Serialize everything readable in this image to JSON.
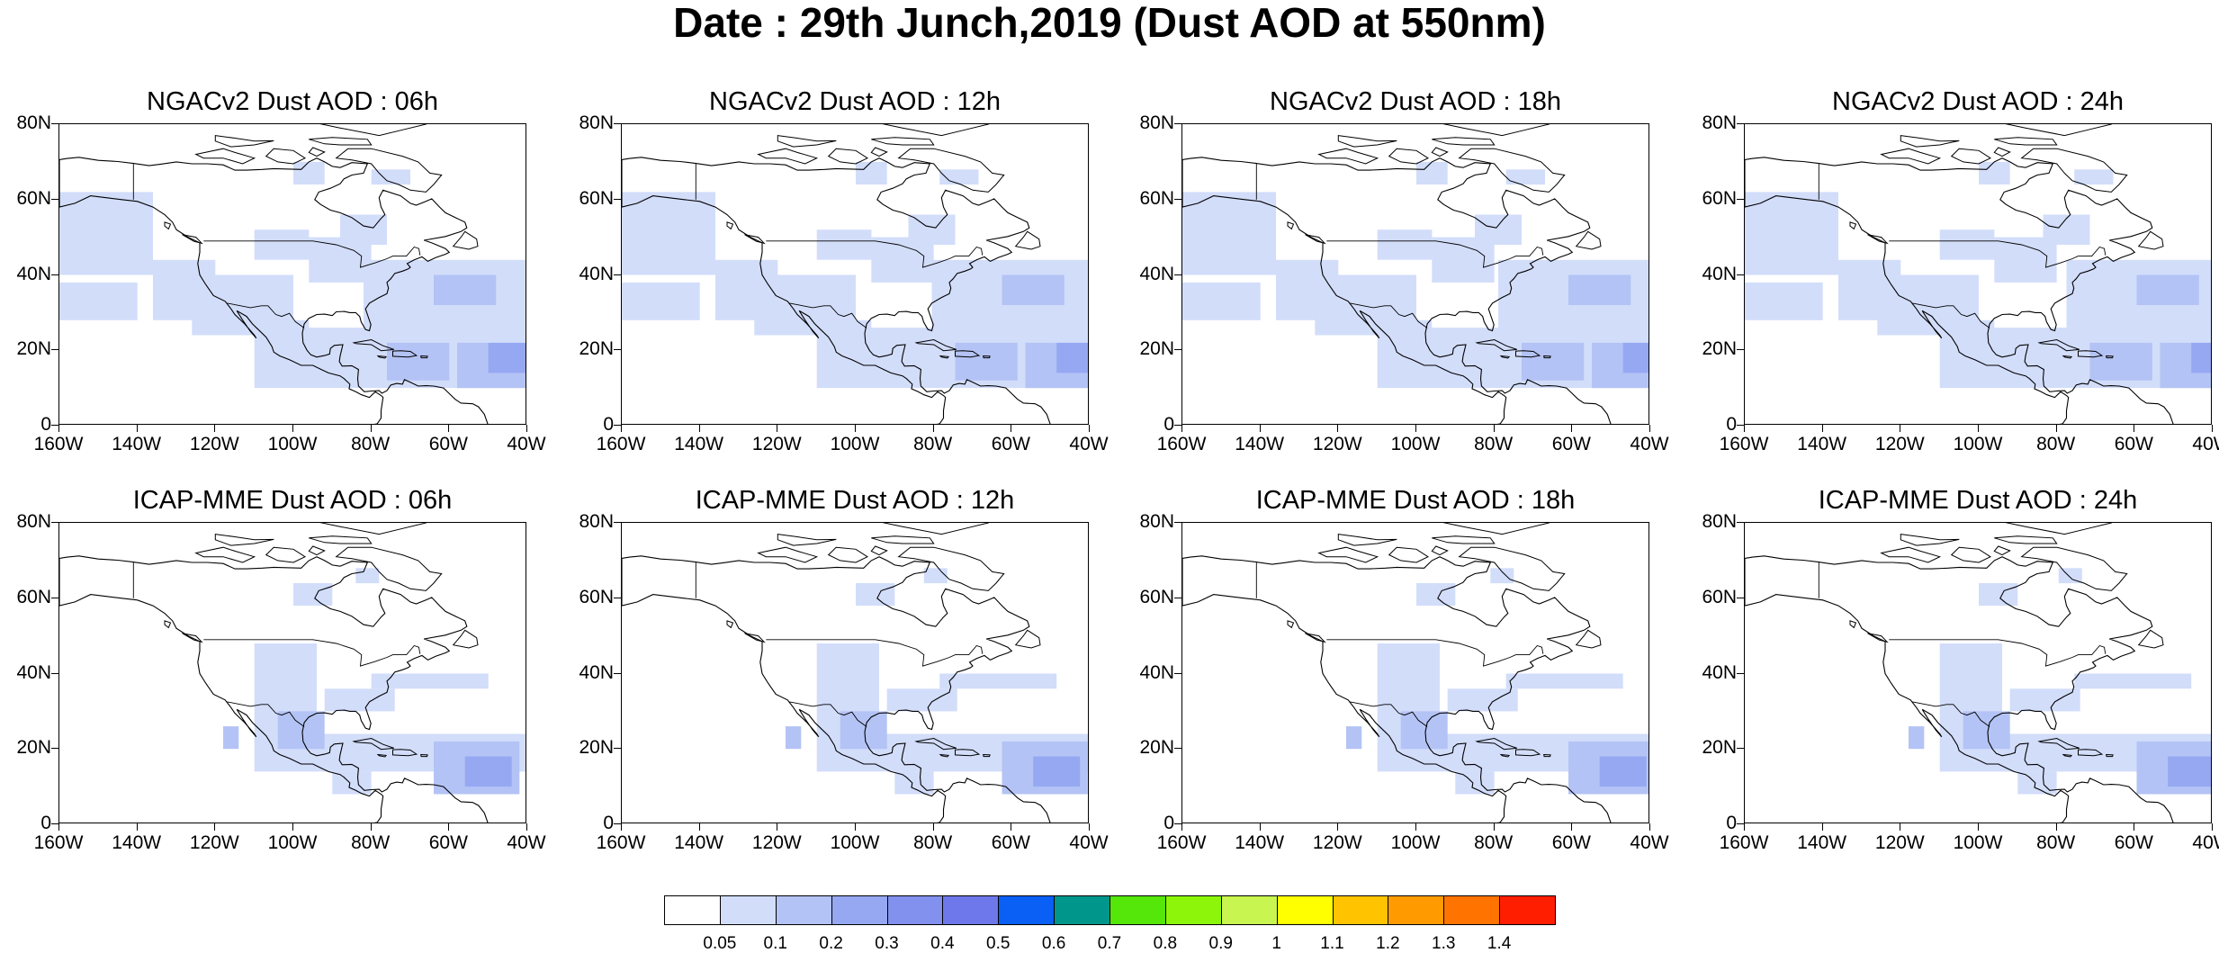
{
  "title": "Date : 29th Junch,2019 (Dust AOD at 550nm)",
  "panels": [
    {
      "title": "NGACv2 Dust AOD : 06h",
      "model": "NGACv2",
      "forecast_hour": "06h"
    },
    {
      "title": "NGACv2 Dust AOD : 12h",
      "model": "NGACv2",
      "forecast_hour": "12h"
    },
    {
      "title": "NGACv2 Dust AOD : 18h",
      "model": "NGACv2",
      "forecast_hour": "18h"
    },
    {
      "title": "NGACv2 Dust AOD : 24h",
      "model": "NGACv2",
      "forecast_hour": "24h"
    },
    {
      "title": "ICAP-MME Dust AOD : 06h",
      "model": "ICAP-MME",
      "forecast_hour": "06h"
    },
    {
      "title": "ICAP-MME Dust AOD : 12h",
      "model": "ICAP-MME",
      "forecast_hour": "12h"
    },
    {
      "title": "ICAP-MME Dust AOD : 18h",
      "model": "ICAP-MME",
      "forecast_hour": "18h"
    },
    {
      "title": "ICAP-MME Dust AOD : 24h",
      "model": "ICAP-MME",
      "forecast_hour": "24h"
    }
  ],
  "axes": {
    "lat_labels": [
      "80N",
      "60N",
      "40N",
      "20N",
      "0"
    ],
    "lon_labels": [
      "160W",
      "140W",
      "120W",
      "100W",
      "80W",
      "60W",
      "40W"
    ],
    "lat_range": [
      0,
      80
    ],
    "lon_range": [
      -160,
      -40
    ]
  },
  "colorbar": {
    "labels": [
      "0.05",
      "0.1",
      "0.2",
      "0.3",
      "0.4",
      "0.5",
      "0.6",
      "0.7",
      "0.8",
      "0.9",
      "1",
      "1.1",
      "1.2",
      "1.3",
      "1.4"
    ],
    "colors": [
      "#ffffff",
      "#d2ddfa",
      "#b4c3f5",
      "#96a8f2",
      "#8291ee",
      "#6e78ea",
      "#0a5ff5",
      "#00968c",
      "#55e60a",
      "#8cf50a",
      "#c8f550",
      "#ffff00",
      "#ffc300",
      "#ff9b00",
      "#ff7300",
      "#ff1e00"
    ]
  }
}
